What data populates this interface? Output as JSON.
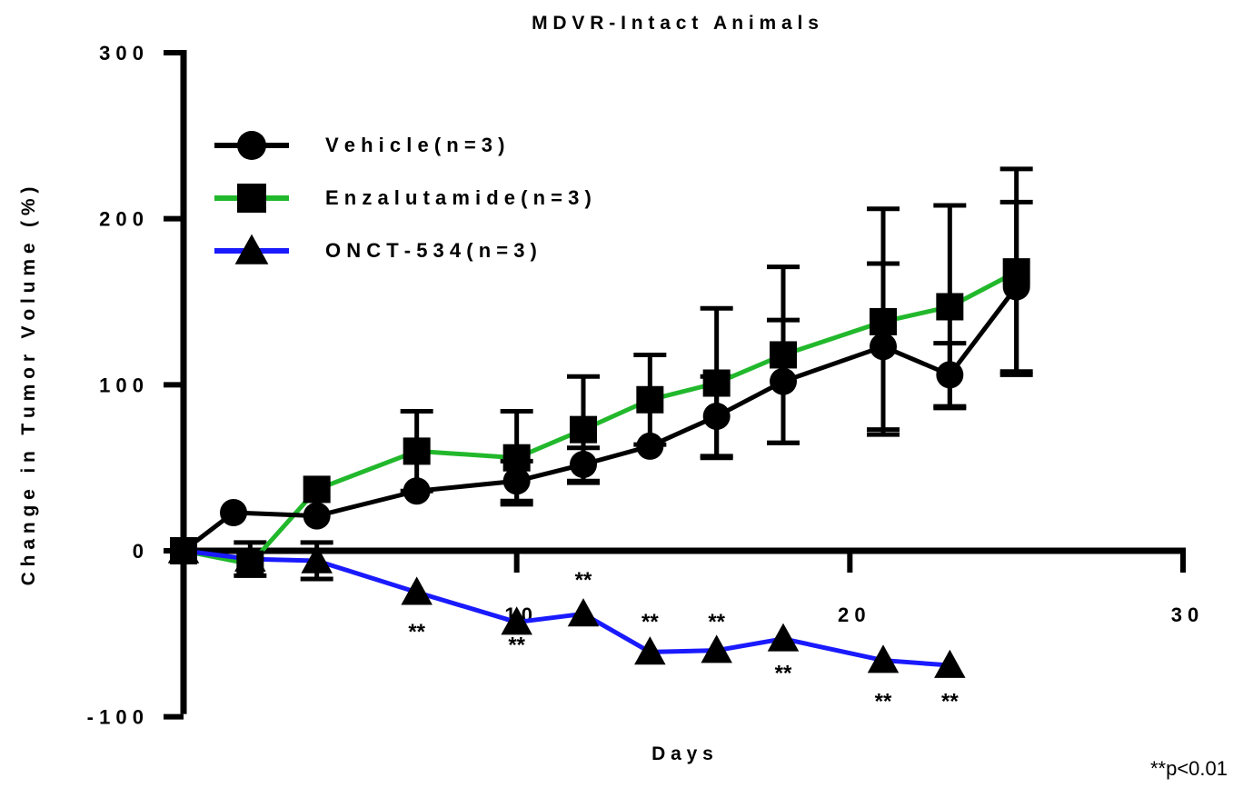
{
  "chart_data": {
    "type": "line",
    "title": "M D V R - I n t a c t   A n i m a l s",
    "xlabel": "D a y s",
    "ylabel": "C h a n g e   i n   T u m o r   V o l u m e   ( % )",
    "xlim": [
      0,
      30
    ],
    "ylim": [
      -100,
      300
    ],
    "xticks": [
      0,
      10,
      20,
      30
    ],
    "xtick_labels": [
      "",
      "1 0",
      "2 0",
      "3 0"
    ],
    "yticks": [
      -100,
      0,
      100,
      200,
      300
    ],
    "ytick_labels": [
      "- 1 0 0",
      "0",
      "1 0 0",
      "2 0 0",
      "3 0 0"
    ],
    "grid": false,
    "legend_position": "top-left",
    "footnote": "**p<0.01",
    "series": [
      {
        "name": "V e h i c l e   ( n = 3 )",
        "color": "#000000",
        "marker": "circle",
        "points": [
          {
            "x": 0,
            "y": 0
          },
          {
            "x": 1.5,
            "y": 23
          },
          {
            "x": 4,
            "y": 21,
            "err": 0
          },
          {
            "x": 7,
            "y": 36,
            "err": 0
          },
          {
            "x": 10,
            "y": 42,
            "err": 12
          },
          {
            "x": 12,
            "y": 52,
            "err": 10
          },
          {
            "x": 14,
            "y": 63,
            "err": 0
          },
          {
            "x": 16,
            "y": 81,
            "err": 24
          },
          {
            "x": 18,
            "y": 102,
            "err": 37
          },
          {
            "x": 21,
            "y": 123,
            "err": 50
          },
          {
            "x": 23,
            "y": 106,
            "err": 19
          },
          {
            "x": 25,
            "y": 159,
            "err": 51
          }
        ]
      },
      {
        "name": "E n z a l u t a m i d e   ( n = 3 )",
        "color": "#22b82c",
        "marker": "square",
        "points": [
          {
            "x": 0,
            "y": 0
          },
          {
            "x": 2,
            "y": -8
          },
          {
            "x": 4,
            "y": 37
          },
          {
            "x": 7,
            "y": 60,
            "err": 24
          },
          {
            "x": 10,
            "y": 56,
            "err": 28
          },
          {
            "x": 12,
            "y": 73,
            "err": 32
          },
          {
            "x": 14,
            "y": 91,
            "err": 27
          },
          {
            "x": 16,
            "y": 101,
            "err": 45
          },
          {
            "x": 18,
            "y": 118,
            "err": 53
          },
          {
            "x": 21,
            "y": 138,
            "err": 68
          },
          {
            "x": 23,
            "y": 147,
            "err": 61
          },
          {
            "x": 25,
            "y": 168,
            "err": 62
          }
        ]
      },
      {
        "name": "O N C T - 5 3 4     ( n = 3 )",
        "color": "#1a1aff",
        "marker": "triangle",
        "points": [
          {
            "x": 0,
            "y": 0
          },
          {
            "x": 2,
            "y": -5,
            "err": 10
          },
          {
            "x": 4,
            "y": -6,
            "err": 11
          },
          {
            "x": 7,
            "y": -25
          },
          {
            "x": 10,
            "y": -43
          },
          {
            "x": 12,
            "y": -38
          },
          {
            "x": 14,
            "y": -61
          },
          {
            "x": 16,
            "y": -60
          },
          {
            "x": 18,
            "y": -53
          },
          {
            "x": 21,
            "y": -66
          },
          {
            "x": 23,
            "y": -69
          }
        ]
      }
    ],
    "annotations": [
      {
        "text": "**",
        "x": 7,
        "y": -53
      },
      {
        "text": "**",
        "x": 10,
        "y": -61
      },
      {
        "text": "**",
        "x": 12,
        "y": -22
      },
      {
        "text": "**",
        "x": 14,
        "y": -47
      },
      {
        "text": "**",
        "x": 16,
        "y": -47
      },
      {
        "text": "**",
        "x": 18,
        "y": -78
      },
      {
        "text": "**",
        "x": 21,
        "y": -95
      },
      {
        "text": "**",
        "x": 23,
        "y": -95
      }
    ]
  }
}
